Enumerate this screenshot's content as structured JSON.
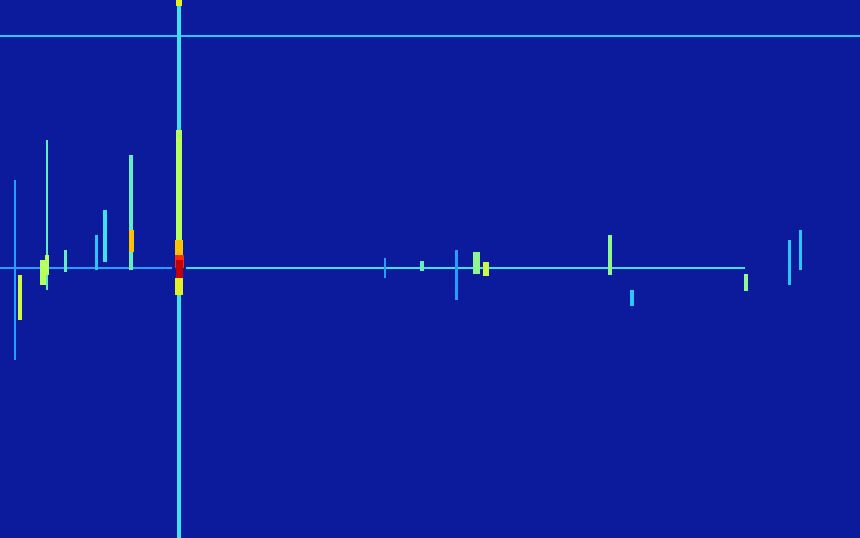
{
  "chart_data": {
    "type": "heatmap",
    "xlim": [
      0,
      860
    ],
    "ylim": [
      0,
      538
    ],
    "tick_labels": false,
    "grid": false,
    "color_range": [
      0,
      10
    ],
    "cells": [
      [
        0,
        860,
        35,
        37,
        3
      ],
      [
        0,
        172,
        267,
        269,
        2.5
      ],
      [
        186,
        745,
        267,
        269,
        3.5
      ],
      [
        177,
        181,
        0,
        538,
        3.5
      ],
      [
        176,
        182,
        0,
        6,
        6
      ],
      [
        176,
        182,
        130,
        240,
        5
      ],
      [
        175,
        183,
        240,
        255,
        7
      ],
      [
        175,
        184,
        255,
        268,
        8.5
      ],
      [
        176,
        183,
        260,
        278,
        10
      ],
      [
        175,
        183,
        278,
        295,
        6
      ],
      [
        46,
        48,
        140,
        290,
        4
      ],
      [
        45,
        49,
        255,
        275,
        5
      ],
      [
        18,
        22,
        275,
        320,
        5.5
      ],
      [
        14,
        16,
        180,
        360,
        2.5
      ],
      [
        40,
        46,
        260,
        285,
        5
      ],
      [
        64,
        67,
        250,
        272,
        4
      ],
      [
        95,
        98,
        235,
        270,
        3
      ],
      [
        103,
        107,
        210,
        262,
        3.5
      ],
      [
        129,
        133,
        155,
        270,
        4
      ],
      [
        129,
        134,
        230,
        252,
        7
      ],
      [
        384,
        386,
        258,
        278,
        2.5
      ],
      [
        420,
        424,
        261,
        271,
        4
      ],
      [
        455,
        458,
        250,
        300,
        2.5
      ],
      [
        473,
        480,
        252,
        274,
        4.5
      ],
      [
        483,
        489,
        262,
        276,
        5.5
      ],
      [
        608,
        612,
        235,
        275,
        4.5
      ],
      [
        630,
        634,
        290,
        306,
        3
      ],
      [
        744,
        748,
        274,
        291,
        4.5
      ],
      [
        788,
        791,
        240,
        285,
        3
      ],
      [
        799,
        802,
        230,
        270,
        3
      ]
    ]
  }
}
